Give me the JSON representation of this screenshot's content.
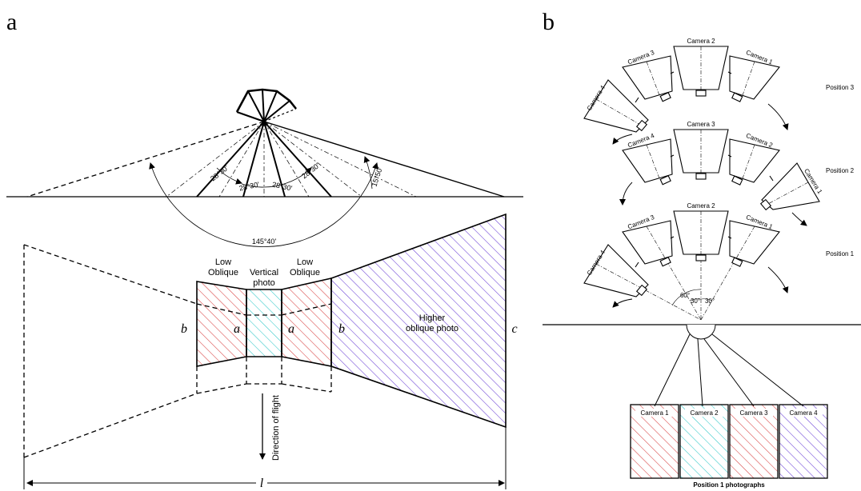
{
  "colors": {
    "oblique_hatch": "#d84040",
    "vertical_hatch": "#30c8c8",
    "high_oblique_hatch": "#6a3fd6",
    "line": "#000000"
  },
  "panel_a": {
    "label": "a",
    "angles": {
      "a1": "28°30'",
      "a2": "28°30'",
      "a3": "28°30'",
      "a4": "28°30'",
      "horizon": "15°50'",
      "total": "145°40'"
    },
    "low_oblique_left": [
      "Low",
      "Oblique"
    ],
    "vertical_photo": [
      "Vertical",
      "photo"
    ],
    "low_oblique_right": [
      "Low",
      "Oblique"
    ],
    "higher_oblique": [
      "Higher",
      "oblique photo"
    ],
    "edge_labels": {
      "b_left": "b",
      "a_left": "a",
      "a_right": "a",
      "b_right": "b",
      "c": "c",
      "l": "l"
    },
    "direction": "Direction of flight"
  },
  "panel_b": {
    "label": "b",
    "positions": [
      {
        "label": "Position 3",
        "cameras": [
          "Camera 4",
          "Camera 3",
          "Camera 2",
          "Camera 1"
        ]
      },
      {
        "label": "Position 2",
        "cameras": [
          "Camera 4",
          "Camera 3",
          "Camera 2",
          "Camera 1"
        ]
      },
      {
        "label": "Position 1",
        "cameras": [
          "Camera 4",
          "Camera 3",
          "Camera 2",
          "Camera 1"
        ]
      }
    ],
    "angles": {
      "a60": "60°",
      "a30a": "30°",
      "a30b": "30°"
    },
    "photos": [
      "Camera 1",
      "Camera 2",
      "Camera 3",
      "Camera 4"
    ],
    "photos_caption": "Position 1  photographs"
  }
}
